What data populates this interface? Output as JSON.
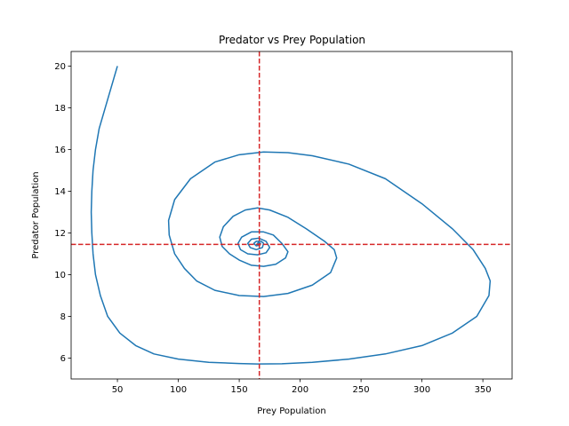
{
  "chart_data": {
    "type": "line",
    "title": "Predator vs Prey Population",
    "xlabel": "Prey Population",
    "ylabel": "Predator Population",
    "xlim": [
      12,
      374
    ],
    "ylim": [
      5,
      20.7
    ],
    "xticks": [
      50,
      100,
      150,
      200,
      250,
      300,
      350
    ],
    "yticks": [
      6,
      8,
      10,
      12,
      14,
      16,
      18,
      20
    ],
    "grid": false,
    "series": [
      {
        "color": "#1f77b4",
        "points": [
          [
            50,
            20
          ],
          [
            45,
            19
          ],
          [
            40,
            18
          ],
          [
            35,
            17
          ],
          [
            32,
            16
          ],
          [
            30,
            15
          ],
          [
            29,
            14
          ],
          [
            28.5,
            13
          ],
          [
            29,
            12
          ],
          [
            30,
            11
          ],
          [
            32,
            10
          ],
          [
            36,
            9
          ],
          [
            42,
            8
          ],
          [
            52,
            7.2
          ],
          [
            65,
            6.6
          ],
          [
            80,
            6.2
          ],
          [
            100,
            5.95
          ],
          [
            125,
            5.8
          ],
          [
            150,
            5.74
          ],
          [
            165,
            5.72
          ],
          [
            185,
            5.73
          ],
          [
            210,
            5.8
          ],
          [
            240,
            5.95
          ],
          [
            270,
            6.2
          ],
          [
            300,
            6.6
          ],
          [
            325,
            7.2
          ],
          [
            345,
            8.0
          ],
          [
            355,
            9.0
          ],
          [
            356,
            9.7
          ],
          [
            352,
            10.3
          ],
          [
            342,
            11.2
          ],
          [
            325,
            12.2
          ],
          [
            300,
            13.4
          ],
          [
            270,
            14.6
          ],
          [
            240,
            15.3
          ],
          [
            210,
            15.7
          ],
          [
            190,
            15.85
          ],
          [
            170,
            15.88
          ],
          [
            150,
            15.75
          ],
          [
            130,
            15.4
          ],
          [
            110,
            14.6
          ],
          [
            97,
            13.6
          ],
          [
            92,
            12.6
          ],
          [
            92.5,
            11.9
          ],
          [
            97,
            11.0
          ],
          [
            105,
            10.3
          ],
          [
            115,
            9.7
          ],
          [
            130,
            9.25
          ],
          [
            150,
            9.0
          ],
          [
            170,
            8.95
          ],
          [
            190,
            9.1
          ],
          [
            210,
            9.5
          ],
          [
            225,
            10.1
          ],
          [
            230,
            10.8
          ],
          [
            228,
            11.2
          ],
          [
            220,
            11.6
          ],
          [
            205,
            12.2
          ],
          [
            190,
            12.75
          ],
          [
            175,
            13.1
          ],
          [
            165,
            13.2
          ],
          [
            155,
            13.1
          ],
          [
            145,
            12.8
          ],
          [
            137,
            12.3
          ],
          [
            134,
            11.8
          ],
          [
            136,
            11.35
          ],
          [
            142,
            11.0
          ],
          [
            150,
            10.7
          ],
          [
            160,
            10.45
          ],
          [
            170,
            10.4
          ],
          [
            180,
            10.5
          ],
          [
            188,
            10.8
          ],
          [
            190,
            11.1
          ],
          [
            185,
            11.5
          ],
          [
            178,
            11.9
          ],
          [
            170,
            12.05
          ],
          [
            160,
            12.05
          ],
          [
            152,
            11.8
          ],
          [
            149,
            11.5
          ],
          [
            151,
            11.2
          ],
          [
            157,
            11.0
          ],
          [
            165,
            10.95
          ],
          [
            172,
            11.05
          ],
          [
            175,
            11.3
          ],
          [
            172,
            11.6
          ],
          [
            166,
            11.75
          ],
          [
            160,
            11.7
          ],
          [
            157,
            11.5
          ],
          [
            159,
            11.3
          ],
          [
            164,
            11.2
          ],
          [
            169,
            11.3
          ],
          [
            170,
            11.5
          ],
          [
            168,
            11.6
          ],
          [
            164,
            11.6
          ],
          [
            162,
            11.5
          ],
          [
            164,
            11.38
          ],
          [
            167,
            11.42
          ],
          [
            167.5,
            11.5
          ],
          [
            166,
            11.55
          ],
          [
            165,
            11.5
          ],
          [
            166,
            11.45
          ],
          [
            166.5,
            11.48
          ]
        ]
      }
    ],
    "reference_lines": {
      "color": "#d62728",
      "vertical_x": 166.5,
      "horizontal_y": 11.45
    }
  }
}
